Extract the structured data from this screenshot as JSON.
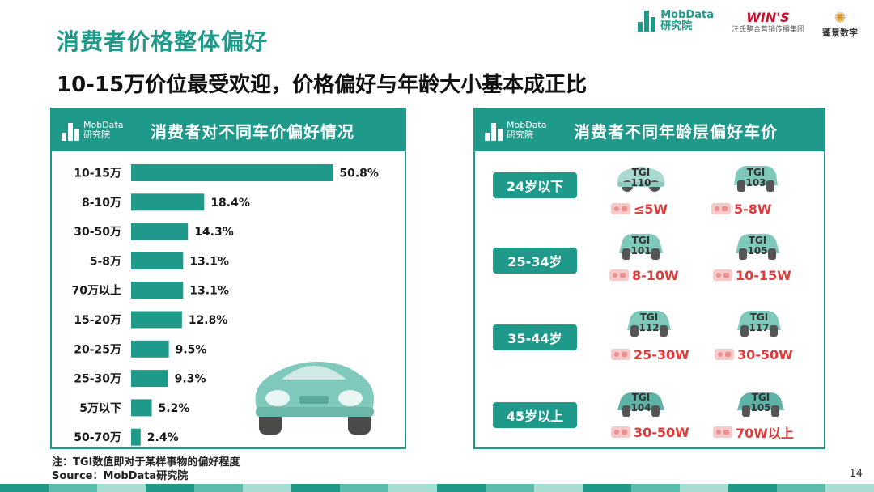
{
  "slide": {
    "title": "消费者价格整体偏好",
    "subtitle": "10-15万价位最受欢迎，价格偏好与年龄大小基本成正比",
    "page_number": "14",
    "note_line1": "注：TGI数值即对于某样事物的偏好程度",
    "note_line2": "Source：MobData研究院"
  },
  "logos": {
    "mobdata_name": "MobData",
    "mobdata_sub": "研究院",
    "wins_name": "WIN'S",
    "wins_sub": "汪氏整合营销传播集团",
    "pengjing_name": "蓬景数字"
  },
  "colors": {
    "accent": "#1f9a8a",
    "price": "#e03a3a",
    "car_body": "#7fc8bc"
  },
  "left_panel": {
    "logo_name": "MobData",
    "logo_sub": "研究院",
    "title": "消费者对不同车价偏好情况"
  },
  "chart_data": {
    "type": "bar",
    "orientation": "horizontal",
    "categories": [
      "10-15万",
      "8-10万",
      "30-50万",
      "5-8万",
      "70万以上",
      "15-20万",
      "20-25万",
      "25-30万",
      "5万以下",
      "50-70万"
    ],
    "values": [
      50.8,
      18.4,
      14.3,
      13.1,
      13.1,
      12.8,
      9.5,
      9.3,
      5.2,
      2.4
    ],
    "value_labels": [
      "50.8%",
      "18.4%",
      "14.3%",
      "13.1%",
      "13.1%",
      "12.8%",
      "9.5%",
      "9.3%",
      "5.2%",
      "2.4%"
    ],
    "title": "消费者对不同车价偏好情况",
    "xlim": [
      0,
      55
    ],
    "grid": false,
    "bar_color": "#1f9a8a"
  },
  "right_panel": {
    "logo_name": "MobData",
    "logo_sub": "研究院",
    "title": "消费者不同年龄层偏好车价",
    "groups": [
      {
        "age": "24岁以下",
        "cars": [
          {
            "tgi_label": "TGI",
            "tgi": "110",
            "price": "≤5W",
            "icon": "beetle-car-icon"
          },
          {
            "tgi_label": "TGI",
            "tgi": "103",
            "price": "5-8W",
            "icon": "compact-car-icon"
          }
        ]
      },
      {
        "age": "25-34岁",
        "cars": [
          {
            "tgi_label": "TGI",
            "tgi": "101",
            "price": "8-10W",
            "icon": "sedan-car-icon"
          },
          {
            "tgi_label": "TGI",
            "tgi": "105",
            "price": "10-15W",
            "icon": "sedan-car-icon"
          }
        ]
      },
      {
        "age": "35-44岁",
        "cars": [
          {
            "tgi_label": "TGI",
            "tgi": "112",
            "price": "25-30W",
            "icon": "sedan-car-icon"
          },
          {
            "tgi_label": "TGI",
            "tgi": "117",
            "price": "30-50W",
            "icon": "sedan-car-icon"
          }
        ]
      },
      {
        "age": "45岁以上",
        "cars": [
          {
            "tgi_label": "TGI",
            "tgi": "104",
            "price": "30-50W",
            "icon": "luxury-car-icon"
          },
          {
            "tgi_label": "TGI",
            "tgi": "105",
            "price": "70W以上",
            "icon": "luxury-car-icon"
          }
        ]
      }
    ]
  }
}
